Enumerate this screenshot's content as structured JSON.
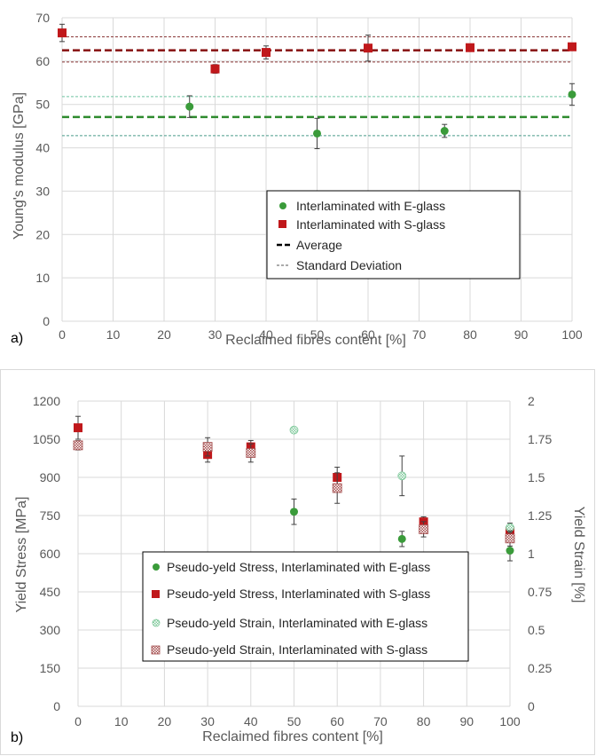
{
  "chart_data": [
    {
      "panel": "a)",
      "type": "scatter",
      "xlabel": "Reclaimed fibres content [%]",
      "ylabel": "Young's modulus [GPa]",
      "xlim": [
        0,
        100
      ],
      "ylim": [
        0,
        70
      ],
      "xticks": [
        0,
        10,
        20,
        30,
        40,
        50,
        60,
        70,
        80,
        90,
        100
      ],
      "yticks": [
        0,
        10,
        20,
        30,
        40,
        50,
        60,
        70
      ],
      "grid": true,
      "legend_position": "lower-right",
      "series": [
        {
          "name": "Interlaminated with E-glass",
          "marker": "circle",
          "color": "#3a9b3a",
          "x": [
            25,
            50,
            75,
            100
          ],
          "y": [
            49.5,
            43.3,
            43.9,
            52.3
          ],
          "err": [
            2.5,
            3.5,
            1.5,
            2.5
          ]
        },
        {
          "name": "Interlaminated with S-glass",
          "marker": "square",
          "color": "#c0181b",
          "x": [
            0,
            30,
            40,
            60,
            80,
            100
          ],
          "y": [
            66.5,
            58.2,
            62.0,
            63.0,
            63.1,
            63.3
          ],
          "err": [
            2.0,
            1.0,
            1.5,
            3.0,
            0.5,
            0.6
          ]
        }
      ],
      "reference_lines": [
        {
          "name": "Average",
          "style": "dashed-thick",
          "color": "#8b1a1a",
          "y": 62.5
        },
        {
          "name": "Standard Deviation",
          "style": "dashed-thin",
          "color": "#8b3a3a",
          "y": 65.6
        },
        {
          "name": "Standard Deviation",
          "style": "dashed-thin",
          "color": "#8b3a3a",
          "y": 59.8
        },
        {
          "name": "Average",
          "style": "dashed-thick",
          "color": "#2e8b2e",
          "y": 47.1
        },
        {
          "name": "Standard Deviation",
          "style": "dashed-thin",
          "color": "#6ec3a0",
          "y": 51.8
        },
        {
          "name": "Standard Deviation",
          "style": "dashed-thin",
          "color": "#4a9a8a",
          "y": 42.8
        }
      ],
      "legend": [
        "Interlaminated with E-glass",
        "Interlaminated with S-glass",
        "Average",
        "Standard Deviation"
      ]
    },
    {
      "panel": "b)",
      "type": "scatter",
      "xlabel": "Reclaimed fibres content [%]",
      "ylabel": "Yield Stress [MPa]",
      "y2label": "Yield Strain [%]",
      "xlim": [
        0,
        100
      ],
      "ylim": [
        0,
        1200
      ],
      "y2lim": [
        0,
        2
      ],
      "xticks": [
        0,
        10,
        20,
        30,
        40,
        50,
        60,
        70,
        80,
        90,
        100
      ],
      "yticks": [
        0,
        150,
        300,
        450,
        600,
        750,
        900,
        1050,
        1200
      ],
      "y2ticks": [
        "0",
        "0.25",
        "0.5",
        "0.75",
        "1",
        "1.25",
        "1.5",
        "1.75",
        "2"
      ],
      "grid": true,
      "legend_position": "lower-left",
      "series": [
        {
          "name": "Pseudo-yeld Stress, Interlaminated with E-glass",
          "marker": "circle",
          "color": "#3a9b3a",
          "axis": "left",
          "x": [
            50,
            75,
            100
          ],
          "y": [
            765,
            658,
            612
          ],
          "err": [
            50,
            30,
            40
          ]
        },
        {
          "name": "Pseudo-yeld Stress, Interlaminated with S-glass",
          "marker": "square",
          "color": "#c0181b",
          "axis": "left",
          "x": [
            0,
            30,
            40,
            60,
            80,
            100
          ],
          "y": [
            1095,
            990,
            1020,
            900,
            725,
            688
          ],
          "err": [
            45,
            30,
            25,
            40,
            20,
            25
          ]
        },
        {
          "name": "Pseudo-yeld Strain, Interlaminated with E-glass",
          "marker": "circle-hatched",
          "color": "#7fc99b",
          "axis": "right",
          "x": [
            50,
            75,
            100
          ],
          "y": [
            1.81,
            1.51,
            1.17
          ],
          "err": [
            0,
            0.13,
            0.03
          ]
        },
        {
          "name": "Pseudo-yeld Strain, Interlaminated with S-glass",
          "marker": "square-hatched",
          "color": "#b07a7a",
          "axis": "right",
          "x": [
            0,
            30,
            40,
            60,
            80,
            100
          ],
          "y": [
            1.71,
            1.7,
            1.66,
            1.43,
            1.16,
            1.1
          ],
          "err": [
            0.03,
            0.06,
            0.06,
            0.1,
            0.05,
            0.05
          ]
        }
      ],
      "legend": [
        "Pseudo-yeld Stress, Interlaminated with E-glass",
        "Pseudo-yeld Stress, Interlaminated with S-glass",
        "Pseudo-yeld Strain, Interlaminated with E-glass",
        "Pseudo-yeld Strain, Interlaminated with S-glass"
      ]
    }
  ]
}
